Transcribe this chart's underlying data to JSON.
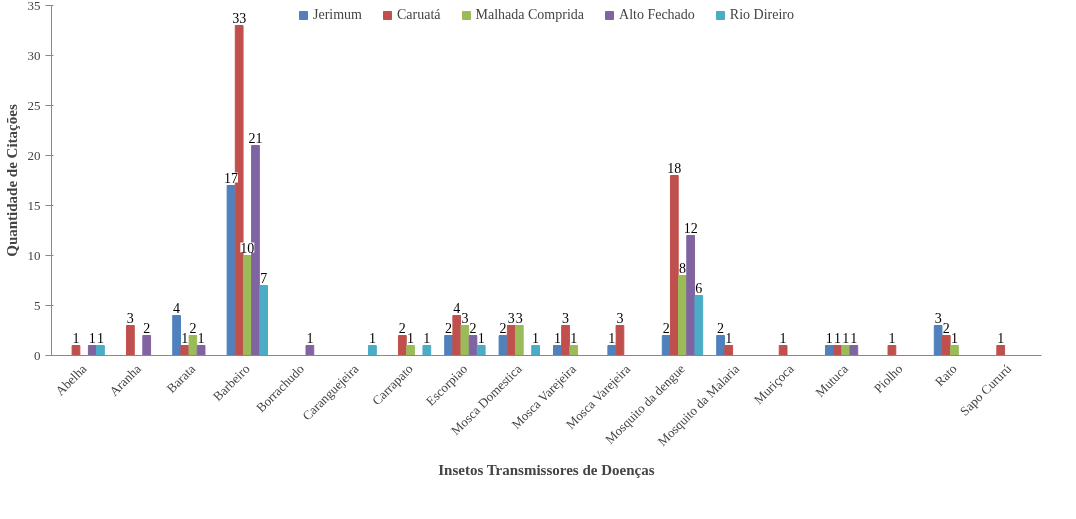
{
  "chart_data": {
    "type": "bar",
    "xlabel": "Insetos Transmissores de Doenças",
    "ylabel": "Quantidade de Citações",
    "categories": [
      "Abelha",
      "Aranha",
      "Barata",
      "Barbeiro",
      "Borrachudo",
      "Caranguejeira",
      "Carrapato",
      "Escorpiao",
      "Mosca Domestica",
      "Mosca Varejeira",
      "Mosca Varejeira",
      "Mosquito da dengue",
      "Mosquito da Malaria",
      "Muriçoca",
      "Mutuca",
      "Piolho",
      "Rato",
      "Sapo Cururú"
    ],
    "series": [
      {
        "name": "Jerimum",
        "color": "#4f81bd",
        "values": [
          null,
          null,
          4,
          17,
          null,
          null,
          null,
          2,
          2,
          1,
          1,
          2,
          2,
          null,
          1,
          null,
          3,
          null
        ]
      },
      {
        "name": "Caruatá",
        "color": "#c0504d",
        "values": [
          1,
          3,
          1,
          33,
          null,
          null,
          2,
          4,
          3,
          3,
          3,
          18,
          1,
          1,
          1,
          1,
          2,
          1
        ]
      },
      {
        "name": "Malhada Comprida",
        "color": "#9bbb59",
        "values": [
          null,
          null,
          2,
          10,
          null,
          null,
          1,
          3,
          3,
          1,
          null,
          8,
          null,
          null,
          1,
          null,
          1,
          null
        ]
      },
      {
        "name": "Alto Fechado",
        "color": "#8064a2",
        "values": [
          1,
          2,
          1,
          21,
          1,
          null,
          null,
          2,
          null,
          null,
          null,
          12,
          null,
          null,
          1,
          null,
          null,
          null
        ]
      },
      {
        "name": "Rio Direiro",
        "color": "#4bacc6",
        "values": [
          1,
          null,
          null,
          7,
          null,
          1,
          1,
          1,
          1,
          null,
          null,
          6,
          null,
          null,
          null,
          null,
          null,
          null
        ]
      }
    ],
    "ylim": [
      0,
      35
    ],
    "yticks": [
      0,
      5,
      10,
      15,
      20,
      25,
      30,
      35
    ],
    "grid": false,
    "legend": "top",
    "data_labels": true
  }
}
